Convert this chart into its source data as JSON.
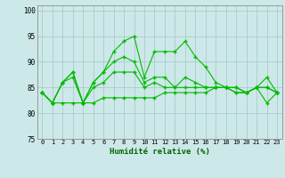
{
  "xlabel": "Humidité relative (%)",
  "background_color": "#cde8e8",
  "grid_color": "#aacccc",
  "line_color": "#00bb00",
  "xlim": [
    -0.5,
    23.5
  ],
  "ylim": [
    75,
    101
  ],
  "yticks": [
    75,
    80,
    85,
    90,
    95,
    100
  ],
  "xticks": [
    0,
    1,
    2,
    3,
    4,
    5,
    6,
    7,
    8,
    9,
    10,
    11,
    12,
    13,
    14,
    15,
    16,
    17,
    18,
    19,
    20,
    21,
    22,
    23
  ],
  "series1": [
    84,
    82,
    86,
    88,
    82,
    86,
    88,
    92,
    94,
    95,
    87,
    92,
    92,
    92,
    94,
    91,
    89,
    86,
    85,
    85,
    84,
    85,
    87,
    84
  ],
  "series2": [
    84,
    82,
    86,
    88,
    82,
    86,
    88,
    90,
    91,
    90,
    86,
    87,
    87,
    85,
    87,
    86,
    85,
    85,
    85,
    84,
    84,
    85,
    85,
    84
  ],
  "series3": [
    84,
    82,
    86,
    87,
    82,
    85,
    86,
    88,
    88,
    88,
    85,
    86,
    85,
    85,
    85,
    85,
    85,
    85,
    85,
    85,
    84,
    85,
    85,
    84
  ],
  "series4": [
    84,
    82,
    82,
    82,
    82,
    82,
    83,
    83,
    83,
    83,
    83,
    83,
    84,
    84,
    84,
    84,
    84,
    85,
    85,
    84,
    84,
    85,
    82,
    84
  ]
}
